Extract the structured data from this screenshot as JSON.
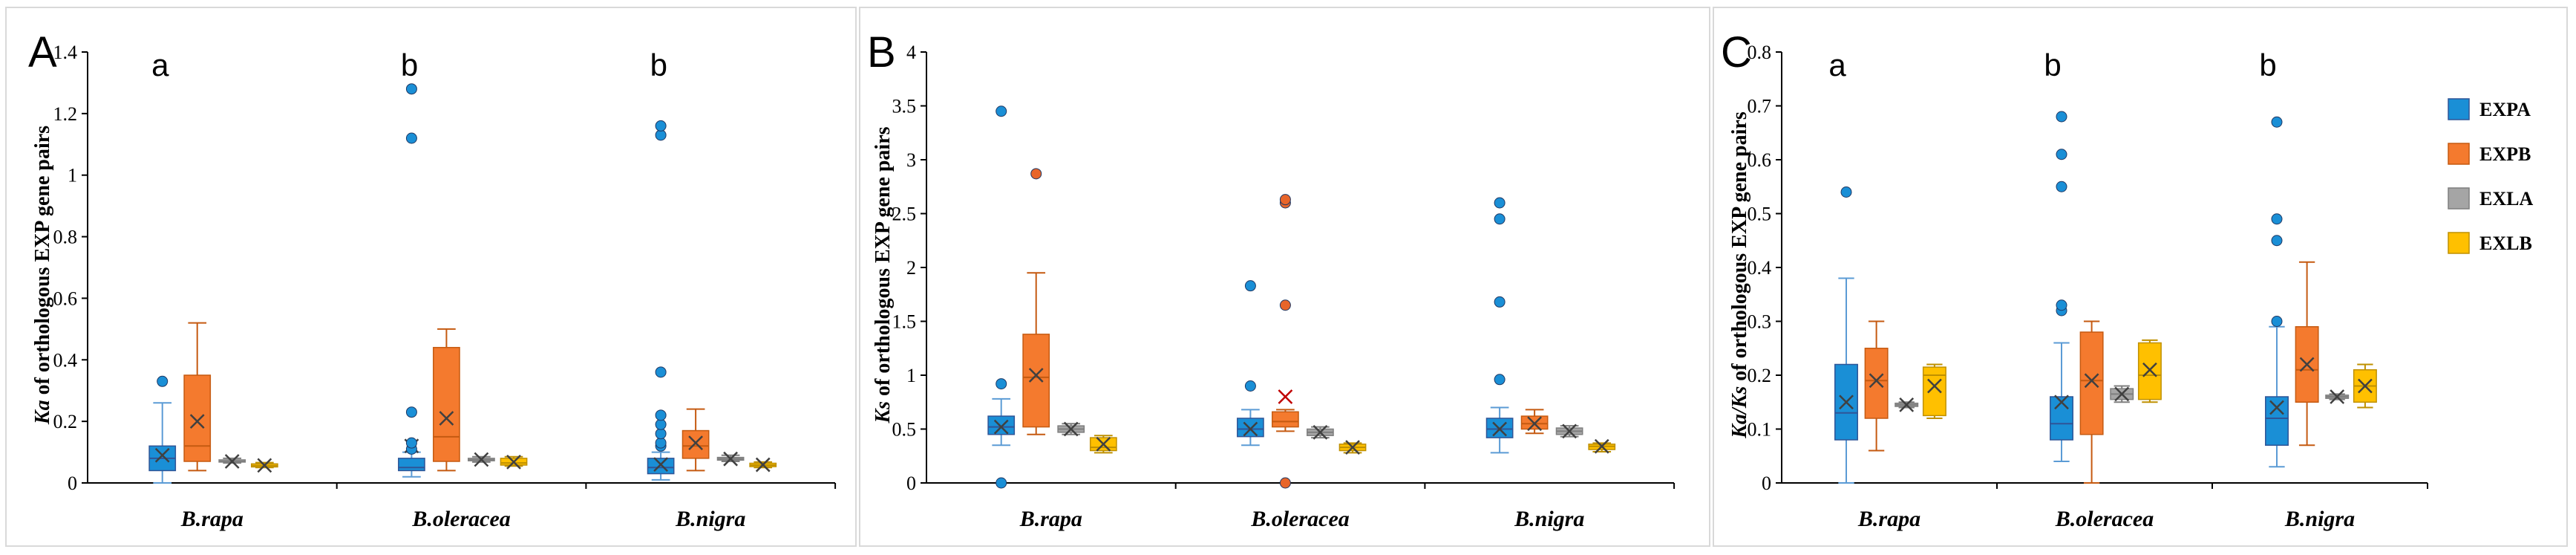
{
  "colors": {
    "EXPA": "#1a8fd6",
    "EXPB": "#f47a2e",
    "EXLA": "#a5a5a5",
    "EXLB": "#ffc000",
    "outlier_EXPA": "#1a8fd6",
    "outlier_EXPB": "#e8652a"
  },
  "chart_data": [
    {
      "type": "box",
      "panel": "A",
      "ylabel_italic": "Ka",
      "ylabel_rest": " of orthologous EXP gene pairs",
      "ylim": [
        0,
        1.4
      ],
      "yticks": [
        "0",
        "0.2",
        "0.4",
        "0.6",
        "0.8",
        "1",
        "1.2",
        "1.4"
      ],
      "categories": [
        "B.rapa",
        "B.oleracea",
        "B.nigra"
      ],
      "significance": [
        "a",
        "b",
        "b"
      ],
      "series": [
        {
          "name": "EXPA",
          "boxes": [
            {
              "min": 0.0,
              "q1": 0.04,
              "median": 0.08,
              "q3": 0.12,
              "max": 0.26,
              "mean": 0.09,
              "outliers": [
                0.33
              ]
            },
            {
              "min": 0.02,
              "q1": 0.04,
              "median": 0.05,
              "q3": 0.08,
              "max": 0.1,
              "mean": 0.12,
              "outliers": [
                0.11,
                0.13,
                0.23,
                1.12,
                1.28
              ]
            },
            {
              "min": 0.01,
              "q1": 0.03,
              "median": 0.05,
              "q3": 0.08,
              "max": 0.1,
              "mean": 0.06,
              "outliers": [
                0.12,
                0.13,
                0.16,
                0.19,
                0.22,
                0.36,
                1.13,
                1.16
              ]
            }
          ]
        },
        {
          "name": "EXPB",
          "boxes": [
            {
              "min": 0.04,
              "q1": 0.07,
              "median": 0.12,
              "q3": 0.35,
              "max": 0.52,
              "mean": 0.2,
              "outliers": []
            },
            {
              "min": 0.04,
              "q1": 0.07,
              "median": 0.15,
              "q3": 0.44,
              "max": 0.5,
              "mean": 0.21,
              "outliers": []
            },
            {
              "min": 0.04,
              "q1": 0.08,
              "median": 0.12,
              "q3": 0.17,
              "max": 0.24,
              "mean": 0.13,
              "outliers": []
            }
          ]
        },
        {
          "name": "EXLA",
          "boxes": [
            {
              "min": 0.065,
              "q1": 0.068,
              "median": 0.07,
              "q3": 0.075,
              "max": 0.08,
              "mean": 0.07,
              "outliers": []
            },
            {
              "min": 0.068,
              "q1": 0.072,
              "median": 0.075,
              "q3": 0.08,
              "max": 0.085,
              "mean": 0.076,
              "outliers": []
            },
            {
              "min": 0.07,
              "q1": 0.074,
              "median": 0.078,
              "q3": 0.083,
              "max": 0.09,
              "mean": 0.078,
              "outliers": []
            }
          ]
        },
        {
          "name": "EXLB",
          "boxes": [
            {
              "min": 0.05,
              "q1": 0.052,
              "median": 0.056,
              "q3": 0.062,
              "max": 0.066,
              "mean": 0.057,
              "outliers": []
            },
            {
              "min": 0.055,
              "q1": 0.058,
              "median": 0.065,
              "q3": 0.08,
              "max": 0.085,
              "mean": 0.068,
              "outliers": []
            },
            {
              "min": 0.05,
              "q1": 0.053,
              "median": 0.058,
              "q3": 0.064,
              "max": 0.068,
              "mean": 0.059,
              "outliers": []
            }
          ]
        }
      ]
    },
    {
      "type": "box",
      "panel": "B",
      "ylabel_italic": "Ks",
      "ylabel_rest": " of orthologous EXP gene pairs",
      "ylim": [
        0,
        4
      ],
      "yticks": [
        "0",
        "0.5",
        "1",
        "1.5",
        "2",
        "2.5",
        "3",
        "3.5",
        "4"
      ],
      "categories": [
        "B.rapa",
        "B.oleracea",
        "B.nigra"
      ],
      "significance": [
        "",
        "",
        ""
      ],
      "series": [
        {
          "name": "EXPA",
          "boxes": [
            {
              "min": 0.35,
              "q1": 0.45,
              "median": 0.52,
              "q3": 0.62,
              "max": 0.78,
              "mean": 0.52,
              "outliers": [
                0.0,
                0.92,
                3.45
              ]
            },
            {
              "min": 0.35,
              "q1": 0.43,
              "median": 0.5,
              "q3": 0.6,
              "max": 0.68,
              "mean": 0.5,
              "outliers": [
                0.9,
                1.83
              ]
            },
            {
              "min": 0.28,
              "q1": 0.42,
              "median": 0.5,
              "q3": 0.6,
              "max": 0.7,
              "mean": 0.5,
              "outliers": [
                0.96,
                1.68,
                2.45,
                2.6
              ]
            }
          ]
        },
        {
          "name": "EXPB",
          "boxes": [
            {
              "min": 0.45,
              "q1": 0.52,
              "median": 0.98,
              "q3": 1.38,
              "max": 1.95,
              "mean": 1.0,
              "outliers": [
                2.87
              ]
            },
            {
              "min": 0.48,
              "q1": 0.52,
              "median": 0.57,
              "q3": 0.66,
              "max": 0.68,
              "mean": 0.8,
              "outliers": [
                0.0,
                1.65,
                2.6,
                2.63
              ]
            },
            {
              "min": 0.46,
              "q1": 0.5,
              "median": 0.55,
              "q3": 0.62,
              "max": 0.68,
              "mean": 0.55,
              "outliers": []
            }
          ]
        },
        {
          "name": "EXLA",
          "boxes": [
            {
              "min": 0.45,
              "q1": 0.47,
              "median": 0.5,
              "q3": 0.53,
              "max": 0.55,
              "mean": 0.5,
              "outliers": []
            },
            {
              "min": 0.42,
              "q1": 0.44,
              "median": 0.47,
              "q3": 0.5,
              "max": 0.52,
              "mean": 0.47,
              "outliers": []
            },
            {
              "min": 0.43,
              "q1": 0.45,
              "median": 0.48,
              "q3": 0.51,
              "max": 0.53,
              "mean": 0.48,
              "outliers": []
            }
          ]
        },
        {
          "name": "EXLB",
          "boxes": [
            {
              "min": 0.28,
              "q1": 0.3,
              "median": 0.33,
              "q3": 0.42,
              "max": 0.44,
              "mean": 0.36,
              "outliers": []
            },
            {
              "min": 0.28,
              "q1": 0.3,
              "median": 0.33,
              "q3": 0.36,
              "max": 0.37,
              "mean": 0.33,
              "outliers": []
            },
            {
              "min": 0.29,
              "q1": 0.31,
              "median": 0.34,
              "q3": 0.36,
              "max": 0.37,
              "mean": 0.34,
              "outliers": []
            }
          ]
        }
      ]
    },
    {
      "type": "box",
      "panel": "C",
      "ylabel_italic": "Ka/Ks",
      "ylabel_rest": " of orthologous EXP gene pairs",
      "ylim": [
        0,
        0.8
      ],
      "yticks": [
        "0",
        "0.1",
        "0.2",
        "0.3",
        "0.4",
        "0.5",
        "0.6",
        "0.7",
        "0.8"
      ],
      "categories": [
        "B.rapa",
        "B.oleracea",
        "B.nigra"
      ],
      "significance": [
        "a",
        "b",
        "b"
      ],
      "series": [
        {
          "name": "EXPA",
          "boxes": [
            {
              "min": 0.0,
              "q1": 0.08,
              "median": 0.13,
              "q3": 0.22,
              "max": 0.38,
              "mean": 0.15,
              "outliers": [
                0.54
              ]
            },
            {
              "min": 0.04,
              "q1": 0.08,
              "median": 0.11,
              "q3": 0.16,
              "max": 0.26,
              "mean": 0.15,
              "outliers": [
                0.32,
                0.33,
                0.55,
                0.61,
                0.68
              ]
            },
            {
              "min": 0.03,
              "q1": 0.07,
              "median": 0.12,
              "q3": 0.16,
              "max": 0.29,
              "mean": 0.14,
              "outliers": [
                0.3,
                0.45,
                0.49,
                0.67
              ]
            }
          ]
        },
        {
          "name": "EXPB",
          "boxes": [
            {
              "min": 0.06,
              "q1": 0.12,
              "median": 0.19,
              "q3": 0.25,
              "max": 0.3,
              "mean": 0.19,
              "outliers": []
            },
            {
              "min": 0.0,
              "q1": 0.09,
              "median": 0.19,
              "q3": 0.28,
              "max": 0.3,
              "mean": 0.19,
              "outliers": []
            },
            {
              "min": 0.07,
              "q1": 0.15,
              "median": 0.21,
              "q3": 0.29,
              "max": 0.41,
              "mean": 0.22,
              "outliers": []
            }
          ]
        },
        {
          "name": "EXLA",
          "boxes": [
            {
              "min": 0.14,
              "q1": 0.142,
              "median": 0.145,
              "q3": 0.148,
              "max": 0.15,
              "mean": 0.145,
              "outliers": []
            },
            {
              "min": 0.15,
              "q1": 0.155,
              "median": 0.165,
              "q3": 0.175,
              "max": 0.18,
              "mean": 0.165,
              "outliers": []
            },
            {
              "min": 0.155,
              "q1": 0.157,
              "median": 0.16,
              "q3": 0.163,
              "max": 0.165,
              "mean": 0.16,
              "outliers": []
            }
          ]
        },
        {
          "name": "EXLB",
          "boxes": [
            {
              "min": 0.12,
              "q1": 0.125,
              "median": 0.2,
              "q3": 0.215,
              "max": 0.22,
              "mean": 0.18,
              "outliers": []
            },
            {
              "min": 0.15,
              "q1": 0.155,
              "median": 0.2,
              "q3": 0.26,
              "max": 0.265,
              "mean": 0.21,
              "outliers": []
            },
            {
              "min": 0.14,
              "q1": 0.15,
              "median": 0.18,
              "q3": 0.21,
              "max": 0.22,
              "mean": 0.18,
              "outliers": []
            }
          ]
        }
      ],
      "legend": [
        "EXPA",
        "EXPB",
        "EXLA",
        "EXLB"
      ],
      "legend_position": "top-right"
    }
  ]
}
